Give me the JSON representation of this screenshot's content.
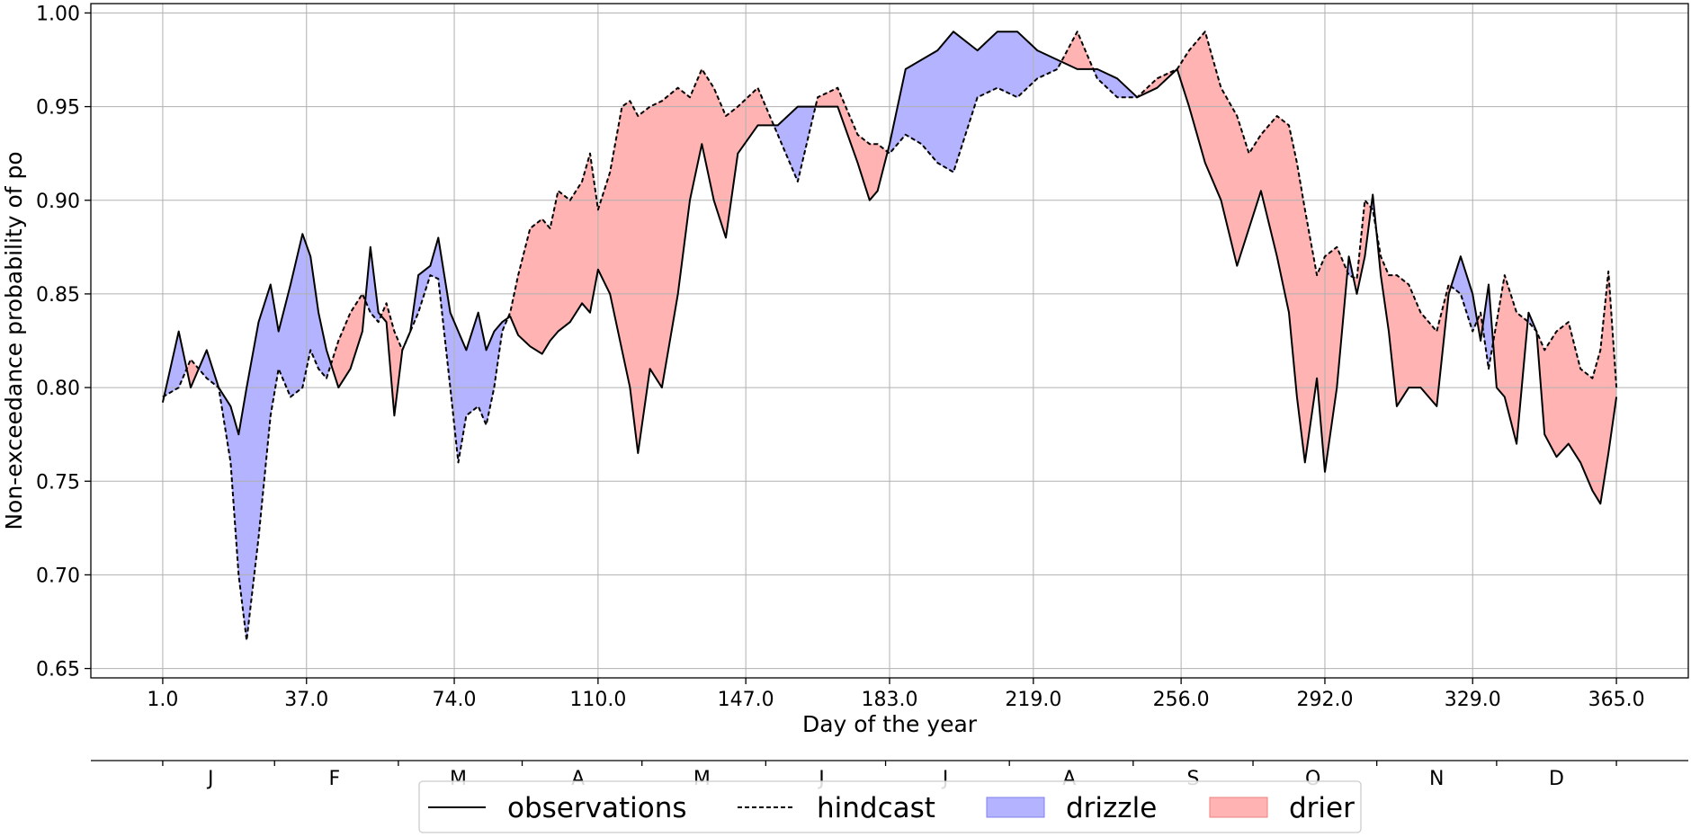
{
  "chart_data": {
    "type": "line",
    "title": "",
    "xlabel": "Day of the year",
    "ylabel": "Non-exceedance probability of po",
    "xlim": [
      -17,
      383
    ],
    "ylim": [
      0.645,
      1.005
    ],
    "grid": true,
    "legend_position": "bottom-center",
    "x_ticks": [
      1,
      37,
      74,
      110,
      147,
      183,
      219,
      256,
      292,
      329,
      365
    ],
    "x_tick_labels": [
      "1.0",
      "37.0",
      "74.0",
      "110.0",
      "147.0",
      "183.0",
      "219.0",
      "256.0",
      "292.0",
      "329.0",
      "365.0"
    ],
    "y_ticks": [
      0.65,
      0.7,
      0.75,
      0.8,
      0.85,
      0.9,
      0.95,
      1.0
    ],
    "y_tick_labels": [
      "0.65",
      "0.70",
      "0.75",
      "0.80",
      "0.85",
      "0.90",
      "0.95",
      "1.00"
    ],
    "month_axis": {
      "labels": [
        "J",
        "F",
        "M",
        "A",
        "M",
        "J",
        "J",
        "A",
        "S",
        "O",
        "N",
        "D"
      ],
      "label_days": [
        13,
        44,
        75,
        105,
        136,
        166,
        197,
        228,
        259,
        289,
        320,
        350
      ],
      "tick_days": [
        1,
        29,
        60,
        91,
        121,
        152,
        182,
        213,
        244,
        274,
        305,
        335,
        365
      ]
    },
    "series": [
      {
        "name": "observations",
        "style": "solid",
        "color": "#000000",
        "x": [
          1,
          5,
          8,
          12,
          15,
          18,
          20,
          22,
          25,
          28,
          30,
          33,
          36,
          38,
          40,
          42,
          45,
          48,
          51,
          53,
          55,
          57,
          59,
          61,
          63,
          65,
          68,
          70,
          73,
          75,
          77,
          80,
          82,
          84,
          86,
          88,
          90,
          93,
          96,
          98,
          100,
          103,
          106,
          108,
          110,
          113,
          116,
          118,
          120,
          123,
          126,
          130,
          133,
          136,
          139,
          142,
          145,
          150,
          155,
          160,
          165,
          170,
          175,
          178,
          180,
          183,
          187,
          191,
          195,
          199,
          205,
          210,
          215,
          220,
          225,
          230,
          235,
          240,
          245,
          250,
          255,
          258,
          262,
          266,
          270,
          273,
          276,
          280,
          283,
          285,
          287,
          290,
          292,
          295,
          298,
          300,
          302,
          304,
          306,
          308,
          310,
          313,
          316,
          320,
          323,
          326,
          329,
          331,
          333,
          335,
          337,
          340,
          343,
          345,
          347,
          350,
          353,
          356,
          359,
          361,
          363,
          365
        ],
        "y": [
          0.792,
          0.83,
          0.8,
          0.82,
          0.8,
          0.79,
          0.775,
          0.8,
          0.835,
          0.855,
          0.83,
          0.855,
          0.882,
          0.87,
          0.84,
          0.82,
          0.8,
          0.81,
          0.83,
          0.875,
          0.84,
          0.835,
          0.785,
          0.82,
          0.83,
          0.86,
          0.865,
          0.88,
          0.84,
          0.83,
          0.82,
          0.84,
          0.82,
          0.83,
          0.835,
          0.838,
          0.828,
          0.822,
          0.818,
          0.825,
          0.83,
          0.835,
          0.845,
          0.84,
          0.863,
          0.85,
          0.82,
          0.8,
          0.765,
          0.81,
          0.8,
          0.85,
          0.9,
          0.93,
          0.9,
          0.88,
          0.925,
          0.94,
          0.94,
          0.95,
          0.95,
          0.95,
          0.92,
          0.9,
          0.905,
          0.93,
          0.97,
          0.975,
          0.98,
          0.99,
          0.98,
          0.99,
          0.99,
          0.98,
          0.975,
          0.97,
          0.97,
          0.965,
          0.955,
          0.96,
          0.97,
          0.95,
          0.92,
          0.9,
          0.865,
          0.885,
          0.905,
          0.87,
          0.84,
          0.795,
          0.76,
          0.805,
          0.755,
          0.8,
          0.87,
          0.85,
          0.87,
          0.903,
          0.86,
          0.83,
          0.79,
          0.8,
          0.8,
          0.79,
          0.85,
          0.87,
          0.85,
          0.825,
          0.855,
          0.8,
          0.795,
          0.77,
          0.84,
          0.83,
          0.775,
          0.763,
          0.77,
          0.76,
          0.745,
          0.738,
          0.765,
          0.795
        ]
      },
      {
        "name": "hindcast",
        "style": "dashed",
        "color": "#000000",
        "x": [
          1,
          5,
          8,
          12,
          15,
          18,
          20,
          22,
          25,
          28,
          30,
          33,
          36,
          38,
          40,
          42,
          45,
          48,
          51,
          53,
          55,
          57,
          59,
          61,
          63,
          65,
          68,
          70,
          73,
          75,
          77,
          80,
          82,
          84,
          86,
          88,
          90,
          93,
          96,
          98,
          100,
          103,
          106,
          108,
          110,
          113,
          116,
          118,
          120,
          123,
          126,
          130,
          133,
          136,
          139,
          142,
          145,
          150,
          155,
          160,
          165,
          170,
          175,
          178,
          180,
          183,
          187,
          191,
          195,
          199,
          205,
          210,
          215,
          220,
          225,
          230,
          235,
          240,
          245,
          250,
          255,
          258,
          262,
          266,
          270,
          273,
          276,
          280,
          283,
          285,
          287,
          290,
          292,
          295,
          298,
          300,
          302,
          304,
          306,
          308,
          310,
          313,
          316,
          320,
          323,
          326,
          329,
          331,
          333,
          335,
          337,
          340,
          343,
          345,
          347,
          350,
          353,
          356,
          359,
          361,
          363,
          365
        ],
        "y": [
          0.795,
          0.8,
          0.815,
          0.805,
          0.8,
          0.76,
          0.7,
          0.665,
          0.72,
          0.785,
          0.81,
          0.795,
          0.8,
          0.82,
          0.81,
          0.805,
          0.825,
          0.84,
          0.85,
          0.84,
          0.835,
          0.845,
          0.83,
          0.82,
          0.83,
          0.84,
          0.86,
          0.858,
          0.8,
          0.76,
          0.785,
          0.79,
          0.78,
          0.8,
          0.83,
          0.84,
          0.86,
          0.885,
          0.89,
          0.885,
          0.905,
          0.9,
          0.91,
          0.925,
          0.895,
          0.915,
          0.95,
          0.953,
          0.945,
          0.95,
          0.953,
          0.96,
          0.955,
          0.97,
          0.96,
          0.945,
          0.95,
          0.96,
          0.935,
          0.91,
          0.955,
          0.96,
          0.935,
          0.93,
          0.93,
          0.925,
          0.935,
          0.93,
          0.92,
          0.915,
          0.955,
          0.96,
          0.955,
          0.965,
          0.97,
          0.99,
          0.965,
          0.955,
          0.955,
          0.965,
          0.97,
          0.98,
          0.99,
          0.96,
          0.945,
          0.925,
          0.935,
          0.945,
          0.94,
          0.92,
          0.895,
          0.86,
          0.87,
          0.875,
          0.86,
          0.858,
          0.9,
          0.895,
          0.87,
          0.86,
          0.86,
          0.855,
          0.84,
          0.83,
          0.855,
          0.85,
          0.83,
          0.84,
          0.81,
          0.835,
          0.86,
          0.84,
          0.835,
          0.83,
          0.82,
          0.83,
          0.835,
          0.81,
          0.805,
          0.82,
          0.862,
          0.8
        ]
      }
    ],
    "fills": [
      {
        "name": "drizzle",
        "color": "#b3b3ff",
        "edge": "#8080ee",
        "where": "observations > hindcast"
      },
      {
        "name": "drier",
        "color": "#ffb3b3",
        "edge": "#ee8080",
        "where": "hindcast > observations"
      }
    ],
    "legend": [
      {
        "label": "observations",
        "kind": "solid-line"
      },
      {
        "label": "hindcast",
        "kind": "dashed-line"
      },
      {
        "label": "drizzle",
        "kind": "patch",
        "color": "#b3b3ff"
      },
      {
        "label": "drier",
        "kind": "patch",
        "color": "#ffb3b3"
      }
    ]
  }
}
